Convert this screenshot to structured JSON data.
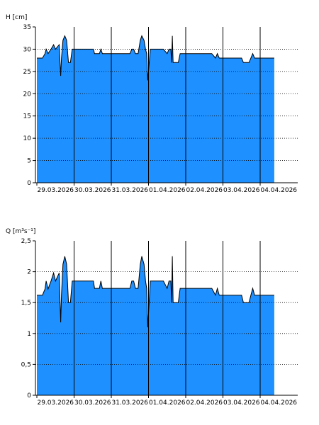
{
  "chart_data": [
    {
      "type": "area",
      "title": "",
      "ylabel": "H [cm]",
      "xlabel": "",
      "ylim": [
        0,
        35
      ],
      "yticks": [
        "0",
        "5",
        "10",
        "15",
        "20",
        "25",
        "30",
        "35"
      ],
      "ytick_values": [
        0,
        5,
        10,
        15,
        20,
        25,
        30,
        35
      ],
      "x_tick_labels": [
        "29.03.2026",
        "30.03.2026",
        "31.03.2026",
        "01.04.2026",
        "02.04.2026",
        "03.04.2026",
        "04.04.2026"
      ],
      "grid": "dotted",
      "fill_color": "#1e90ff",
      "series": [
        {
          "values": [
            [
              0,
              28
            ],
            [
              0.15,
              28
            ],
            [
              0.22,
              29
            ],
            [
              0.25,
              30
            ],
            [
              0.3,
              29
            ],
            [
              0.38,
              30
            ],
            [
              0.45,
              31
            ],
            [
              0.5,
              30
            ],
            [
              0.6,
              31
            ],
            [
              0.64,
              24
            ],
            [
              0.66,
              28
            ],
            [
              0.7,
              32
            ],
            [
              0.75,
              33
            ],
            [
              0.8,
              32
            ],
            [
              0.85,
              27
            ],
            [
              0.9,
              27
            ],
            [
              0.95,
              30
            ],
            [
              1.0,
              30
            ],
            [
              1.3,
              30
            ],
            [
              1.52,
              30
            ],
            [
              1.55,
              29
            ],
            [
              1.68,
              29
            ],
            [
              1.72,
              30
            ],
            [
              1.76,
              29
            ],
            [
              2.0,
              29
            ],
            [
              2.5,
              29
            ],
            [
              2.55,
              30
            ],
            [
              2.6,
              30
            ],
            [
              2.65,
              29
            ],
            [
              2.72,
              29
            ],
            [
              2.78,
              32
            ],
            [
              2.82,
              33
            ],
            [
              2.88,
              32
            ],
            [
              2.92,
              30
            ],
            [
              2.95,
              29
            ],
            [
              2.98,
              23
            ],
            [
              3.05,
              30
            ],
            [
              3.1,
              30
            ],
            [
              3.4,
              30
            ],
            [
              3.5,
              29
            ],
            [
              3.55,
              30
            ],
            [
              3.6,
              30
            ],
            [
              3.62,
              27
            ],
            [
              3.64,
              33
            ],
            [
              3.66,
              27
            ],
            [
              3.8,
              27
            ],
            [
              3.85,
              29
            ],
            [
              4.0,
              29
            ],
            [
              4.7,
              29
            ],
            [
              4.8,
              28
            ],
            [
              4.85,
              29
            ],
            [
              4.9,
              28
            ],
            [
              5.0,
              28
            ],
            [
              5.5,
              28
            ],
            [
              5.55,
              27
            ],
            [
              5.7,
              27
            ],
            [
              5.75,
              28
            ],
            [
              5.8,
              29
            ],
            [
              5.85,
              28
            ],
            [
              6.0,
              28
            ],
            [
              6.38,
              28
            ]
          ]
        }
      ]
    },
    {
      "type": "area",
      "title": "",
      "ylabel": "Q [m³s⁻¹]",
      "xlabel": "",
      "ylim": [
        0,
        2.5
      ],
      "yticks": [
        "0",
        "0,5",
        "1",
        "1,5",
        "2",
        "2,5"
      ],
      "ytick_values": [
        0,
        0.5,
        1,
        1.5,
        2,
        2.5
      ],
      "x_tick_labels": [
        "29.03.2026",
        "30.03.2026",
        "31.03.2026",
        "01.04.2026",
        "02.04.2026",
        "03.04.2026",
        "04.04.2026"
      ],
      "grid": "dotted",
      "fill_color": "#1e90ff",
      "series": [
        {
          "values": [
            [
              0,
              1.62
            ],
            [
              0.15,
              1.62
            ],
            [
              0.22,
              1.72
            ],
            [
              0.25,
              1.85
            ],
            [
              0.3,
              1.72
            ],
            [
              0.38,
              1.85
            ],
            [
              0.45,
              1.98
            ],
            [
              0.5,
              1.85
            ],
            [
              0.6,
              1.98
            ],
            [
              0.64,
              1.18
            ],
            [
              0.66,
              1.62
            ],
            [
              0.7,
              2.12
            ],
            [
              0.75,
              2.25
            ],
            [
              0.8,
              2.12
            ],
            [
              0.85,
              1.5
            ],
            [
              0.9,
              1.5
            ],
            [
              0.95,
              1.85
            ],
            [
              1.0,
              1.85
            ],
            [
              1.3,
              1.85
            ],
            [
              1.52,
              1.85
            ],
            [
              1.55,
              1.73
            ],
            [
              1.68,
              1.73
            ],
            [
              1.72,
              1.85
            ],
            [
              1.76,
              1.73
            ],
            [
              2.0,
              1.73
            ],
            [
              2.5,
              1.73
            ],
            [
              2.55,
              1.85
            ],
            [
              2.6,
              1.85
            ],
            [
              2.65,
              1.73
            ],
            [
              2.72,
              1.73
            ],
            [
              2.78,
              2.12
            ],
            [
              2.82,
              2.25
            ],
            [
              2.88,
              2.12
            ],
            [
              2.92,
              1.85
            ],
            [
              2.95,
              1.73
            ],
            [
              2.98,
              1.1
            ],
            [
              3.05,
              1.85
            ],
            [
              3.1,
              1.85
            ],
            [
              3.4,
              1.85
            ],
            [
              3.5,
              1.73
            ],
            [
              3.55,
              1.85
            ],
            [
              3.6,
              1.85
            ],
            [
              3.62,
              1.5
            ],
            [
              3.64,
              2.25
            ],
            [
              3.66,
              1.5
            ],
            [
              3.8,
              1.5
            ],
            [
              3.85,
              1.73
            ],
            [
              4.0,
              1.73
            ],
            [
              4.7,
              1.73
            ],
            [
              4.8,
              1.62
            ],
            [
              4.85,
              1.73
            ],
            [
              4.9,
              1.62
            ],
            [
              5.0,
              1.62
            ],
            [
              5.5,
              1.62
            ],
            [
              5.55,
              1.5
            ],
            [
              5.7,
              1.5
            ],
            [
              5.75,
              1.62
            ],
            [
              5.8,
              1.73
            ],
            [
              5.85,
              1.62
            ],
            [
              6.0,
              1.62
            ],
            [
              6.38,
              1.62
            ]
          ]
        }
      ]
    }
  ]
}
